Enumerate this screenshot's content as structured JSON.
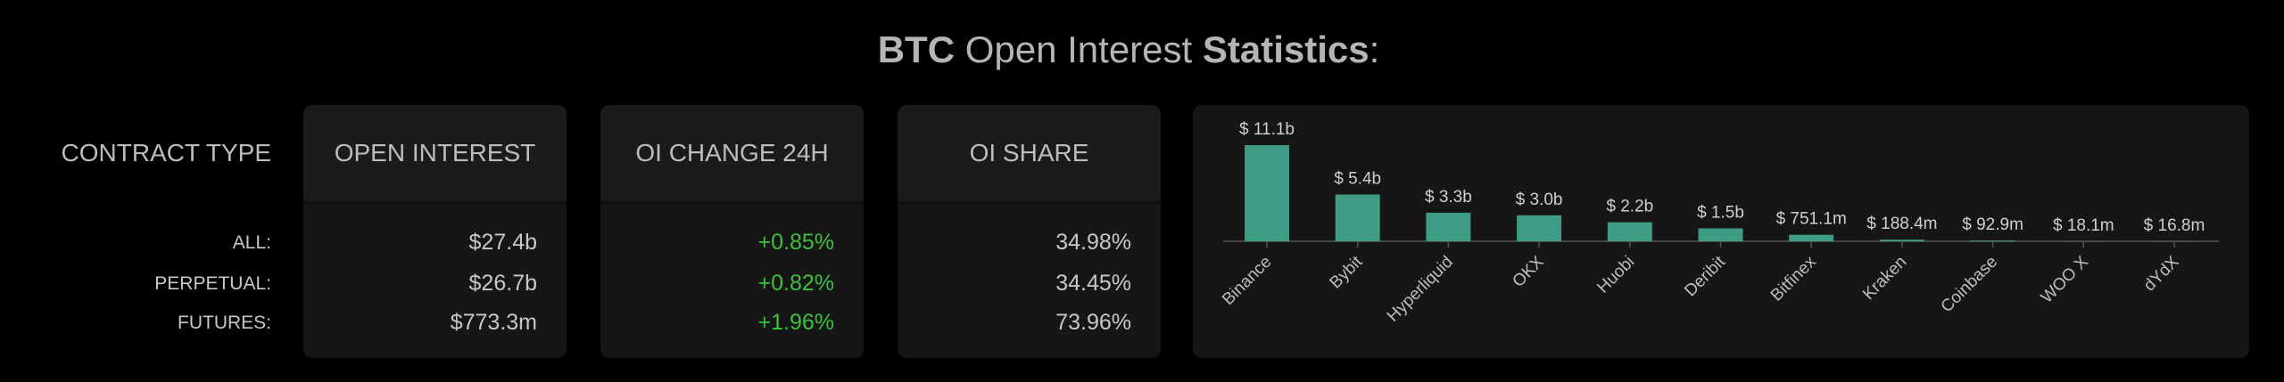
{
  "header": {
    "title_parts": [
      "BTC",
      "Open Interest",
      "Statistics",
      ":"
    ]
  },
  "table": {
    "columns": [
      "CONTRACT TYPE",
      "OPEN INTEREST",
      "OI CHANGE 24H",
      "OI SHARE"
    ],
    "rows": [
      [
        "ALL:",
        "$27.4b",
        "+0.85%",
        "34.98%"
      ],
      [
        "PERPETUAL:",
        "$26.7b",
        "+0.82%",
        "34.45%"
      ],
      [
        "FUTURES:",
        "$773.3m",
        "+1.96%",
        "73.96%"
      ]
    ]
  },
  "chart_data": {
    "type": "bar",
    "categories": [
      "Binance",
      "Bybit",
      "Hyperliquid",
      "OKX",
      "Huobi",
      "Deribit",
      "Bitfinex",
      "Kraken",
      "Coinbase",
      "WOO X",
      "dYdX"
    ],
    "values": [
      11100000000,
      5400000000,
      3300000000,
      3000000000,
      2200000000,
      1500000000,
      751100000,
      188400000,
      92900000,
      18100000,
      16800000
    ],
    "value_labels": [
      "$ 11.1b",
      "$ 5.4b",
      "$ 3.3b",
      "$ 3.0b",
      "$ 2.2b",
      "$ 1.5b",
      "$ 751.1m",
      "$ 188.4m",
      "$ 92.9m",
      "$ 18.1m",
      "$ 16.8m"
    ],
    "color": "#3d9c83"
  }
}
